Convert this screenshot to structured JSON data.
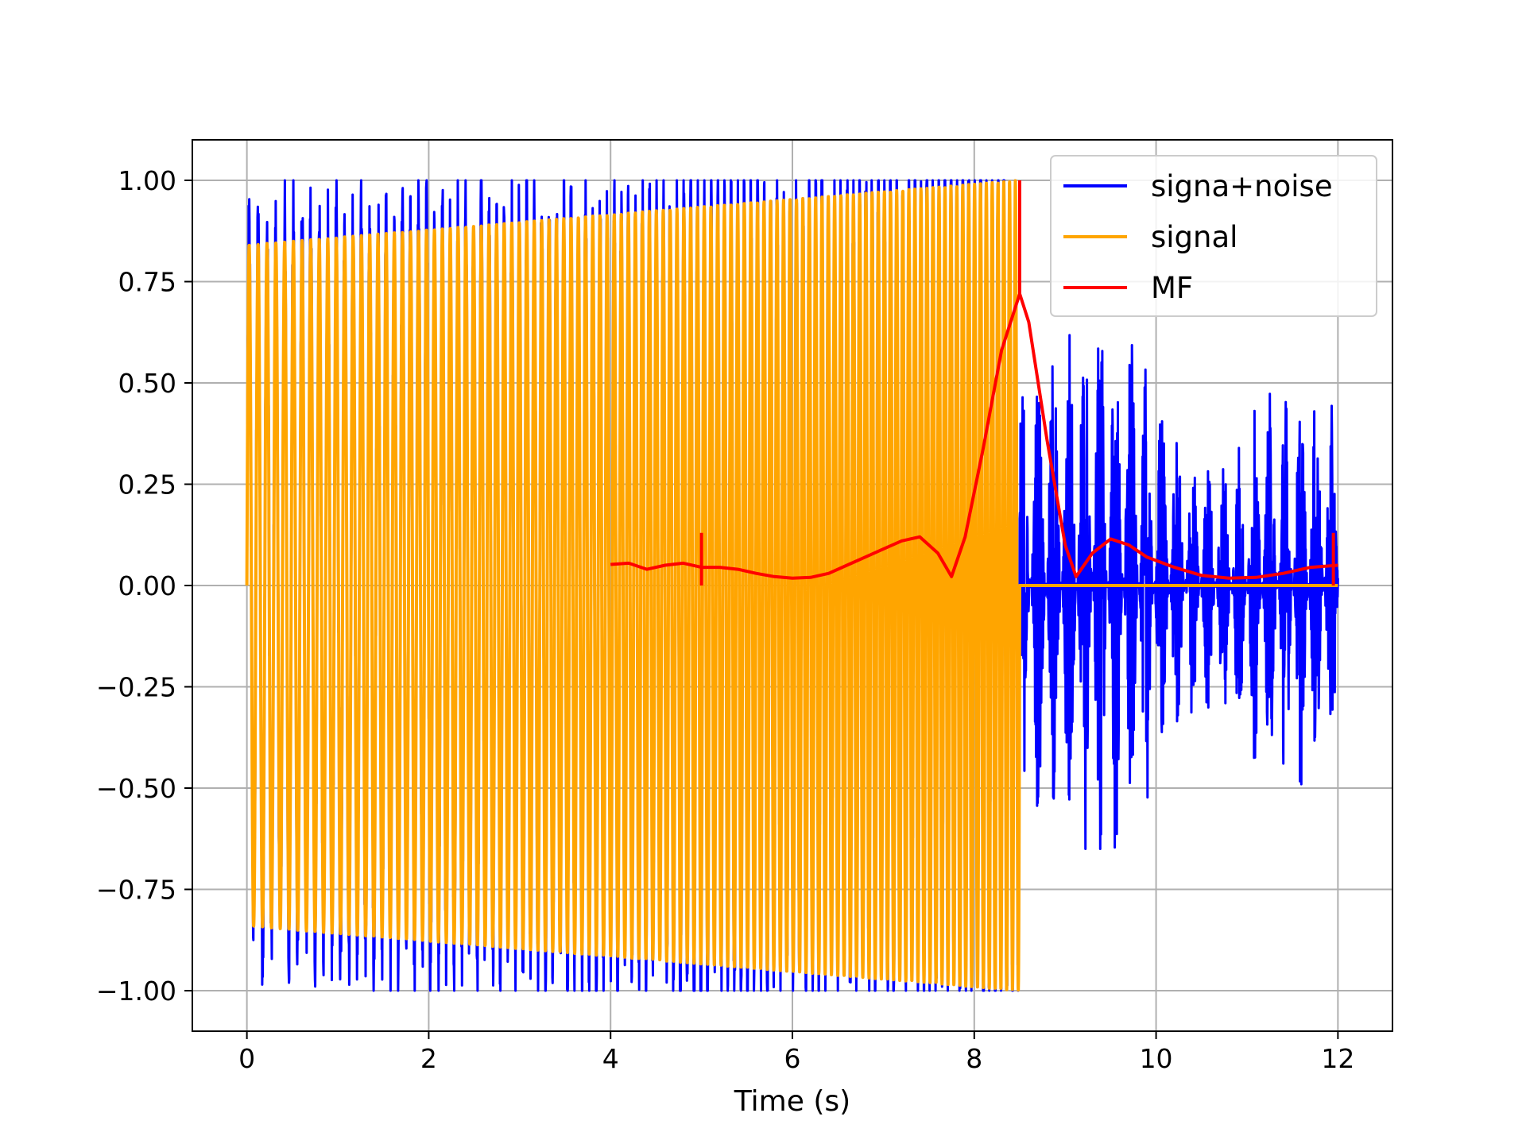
{
  "chart_data": {
    "type": "line",
    "title": "",
    "xlabel": "Time (s)",
    "ylabel": "",
    "xlim": [
      -0.6,
      12.6
    ],
    "ylim": [
      -1.1,
      1.1
    ],
    "xticks": [
      0,
      2,
      4,
      6,
      8,
      10,
      12
    ],
    "xtick_labels": [
      "0",
      "2",
      "4",
      "6",
      "8",
      "10",
      "12"
    ],
    "yticks": [
      1.0,
      0.75,
      0.5,
      0.25,
      0.0,
      -0.25,
      -0.5,
      -0.75,
      -1.0
    ],
    "ytick_labels": [
      "1.00",
      "0.75",
      "0.50",
      "0.25",
      "0.00",
      "−0.25",
      "−0.50",
      "−0.75",
      "−1.00"
    ],
    "grid": true,
    "legend_position": "top-right",
    "series": [
      {
        "name": "signa+noise",
        "color": "#0000ff",
        "description_of_shape": "noisy oscillation",
        "x_range": [
          0,
          12
        ],
        "segments": [
          {
            "x": [
              0,
              8.5
            ],
            "amplitude": [
              0.85,
              1.0
            ]
          },
          {
            "x": [
              8.5,
              12
            ],
            "amplitude": [
              0.2,
              0.65
            ]
          }
        ]
      },
      {
        "name": "signal",
        "color": "#ffa500",
        "x_range": [
          0,
          12
        ],
        "chirp": {
          "start": 0,
          "end": 8.5,
          "amplitude_start": 0.84,
          "amplitude_end": 1.0,
          "cycles": 110
        },
        "zero_after": [
          8.5,
          12
        ]
      },
      {
        "name": "MF",
        "color": "#ff0000",
        "x": [
          4.0,
          4.2,
          4.4,
          4.6,
          4.8,
          5.0,
          5.2,
          5.4,
          5.6,
          5.8,
          6.0,
          6.2,
          6.4,
          6.6,
          6.8,
          7.0,
          7.2,
          7.4,
          7.6,
          7.75,
          7.9,
          8.1,
          8.3,
          8.5,
          8.6,
          8.8,
          9.0,
          9.12,
          9.3,
          9.5,
          9.7,
          9.9,
          10.2,
          10.5,
          10.8,
          11.1,
          11.4,
          11.7,
          12.0
        ],
        "y": [
          0.052,
          0.055,
          0.04,
          0.05,
          0.055,
          0.045,
          0.045,
          0.04,
          0.03,
          0.022,
          0.018,
          0.02,
          0.03,
          0.05,
          0.07,
          0.09,
          0.11,
          0.12,
          0.08,
          0.022,
          0.12,
          0.34,
          0.58,
          0.72,
          0.65,
          0.36,
          0.1,
          0.022,
          0.08,
          0.115,
          0.1,
          0.07,
          0.045,
          0.025,
          0.018,
          0.02,
          0.03,
          0.045,
          0.05
        ],
        "spikes": [
          {
            "x": 5.0,
            "y_min": 0.0,
            "y_max": 0.13
          },
          {
            "x": 8.5,
            "y_min": 0.72,
            "y_max": 1.0
          },
          {
            "x": 11.95,
            "y_min": 0.0,
            "y_max": 0.13
          }
        ]
      }
    ]
  }
}
